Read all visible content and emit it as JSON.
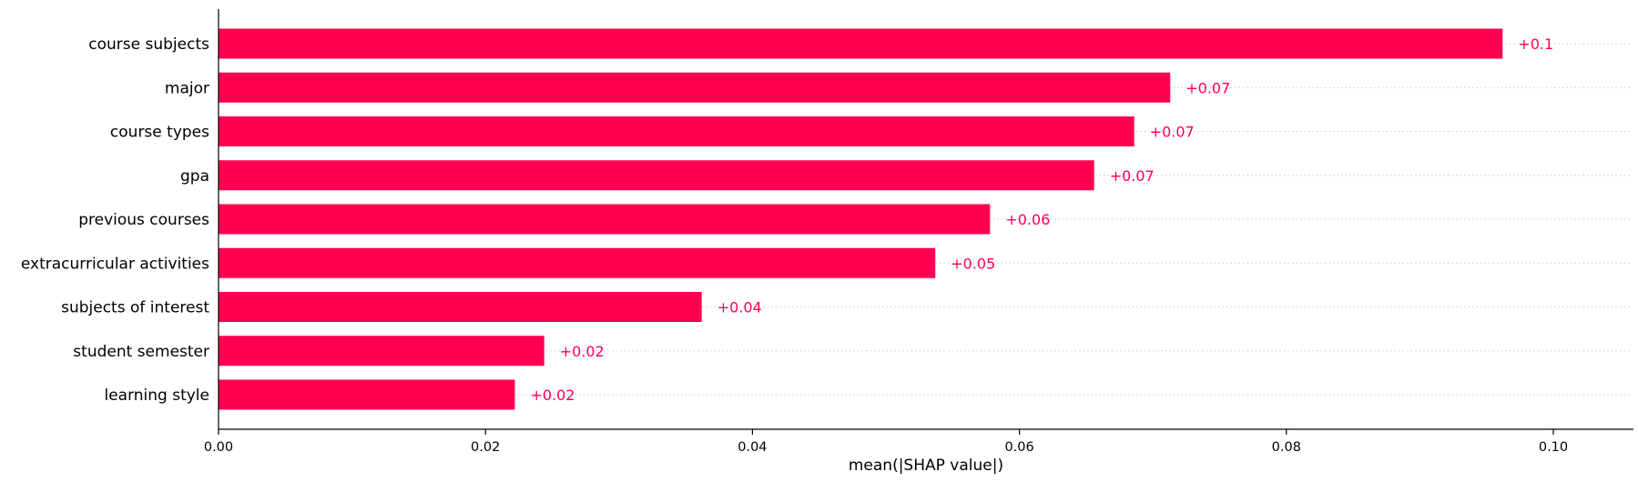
{
  "chart_data": {
    "type": "bar",
    "orientation": "horizontal",
    "categories": [
      "course subjects",
      "major",
      "course types",
      "gpa",
      "previous courses",
      "extracurricular activities",
      "subjects of interest",
      "student semester",
      "learning style"
    ],
    "values": [
      0.0962,
      0.0713,
      0.0686,
      0.0656,
      0.0578,
      0.0537,
      0.0362,
      0.0244,
      0.0222
    ],
    "value_labels": [
      "+0.1",
      "+0.07",
      "+0.07",
      "+0.07",
      "+0.06",
      "+0.05",
      "+0.04",
      "+0.02",
      "+0.02"
    ],
    "xlabel": "mean(|SHAP value|)",
    "ylabel": "",
    "xlim": [
      0.0,
      0.106
    ],
    "x_ticks": [
      0.0,
      0.02,
      0.04,
      0.06,
      0.08,
      0.1
    ],
    "x_tick_labels": [
      "0.00",
      "0.02",
      "0.04",
      "0.06",
      "0.08",
      "0.10"
    ],
    "grid": "dotted horizontal guide per row",
    "legend": "none",
    "colors": {
      "bar": "#ff0051",
      "value_label": "#ff0051",
      "axis": "#000000",
      "guide": "#cccccc"
    }
  }
}
